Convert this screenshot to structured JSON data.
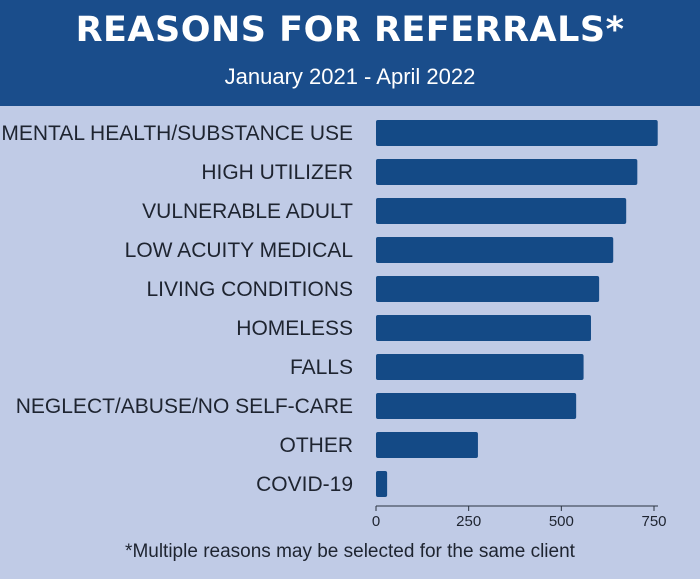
{
  "header": {
    "title": "REASONS FOR REFERRALS*",
    "subtitle": "January 2021 - April 2022"
  },
  "footnote": "*Multiple reasons may be selected for the same client",
  "colors": {
    "header_bg": "#1a4d8b",
    "bar": "#144a86",
    "background": "#c0cbe6"
  },
  "chart_data": {
    "type": "bar",
    "orientation": "horizontal",
    "categories": [
      "MENTAL HEALTH/SUBSTANCE USE",
      "HIGH UTILIZER",
      "VULNERABLE ADULT",
      "LOW ACUITY MEDICAL",
      "LIVING CONDITIONS",
      "HOMELESS",
      "FALLS",
      "NEGLECT/ABUSE/NO SELF-CARE",
      "OTHER",
      "COVID-19"
    ],
    "values": [
      760,
      705,
      675,
      640,
      602,
      580,
      560,
      540,
      275,
      30
    ],
    "xticks": [
      0,
      250,
      500,
      750
    ],
    "xlim": [
      0,
      760
    ],
    "grid": false,
    "legend": "none"
  }
}
